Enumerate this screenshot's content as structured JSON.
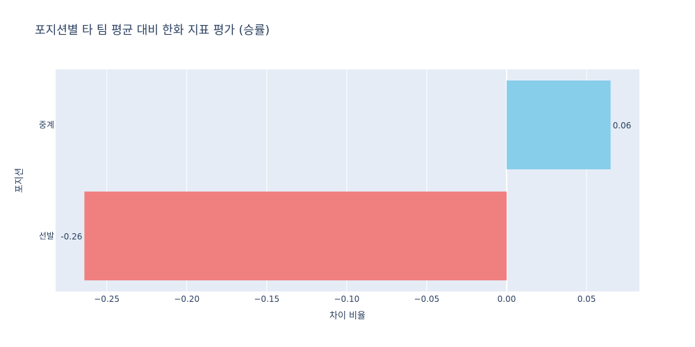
{
  "chart_data": {
    "type": "bar",
    "orientation": "horizontal",
    "title": "포지션별 타 팀 평균 대비 한화 지표 평가 (승률)",
    "xlabel": "차이 비율",
    "ylabel": "포지션",
    "categories": [
      "선발",
      "중계"
    ],
    "values": [
      -0.264,
      0.065
    ],
    "data_labels": [
      "-0.26",
      "0.06"
    ],
    "colors": [
      "#f08080",
      "#87ceeb"
    ],
    "xlim": [
      -0.282,
      0.083
    ],
    "x_ticks": [
      -0.25,
      -0.2,
      -0.15,
      -0.1,
      -0.05,
      0,
      0.05
    ],
    "x_tick_labels": [
      "−0.25",
      "−0.20",
      "−0.15",
      "−0.10",
      "−0.05",
      "0.00",
      "0.05"
    ],
    "grid": true,
    "plot_background": "#e5ecf6"
  }
}
